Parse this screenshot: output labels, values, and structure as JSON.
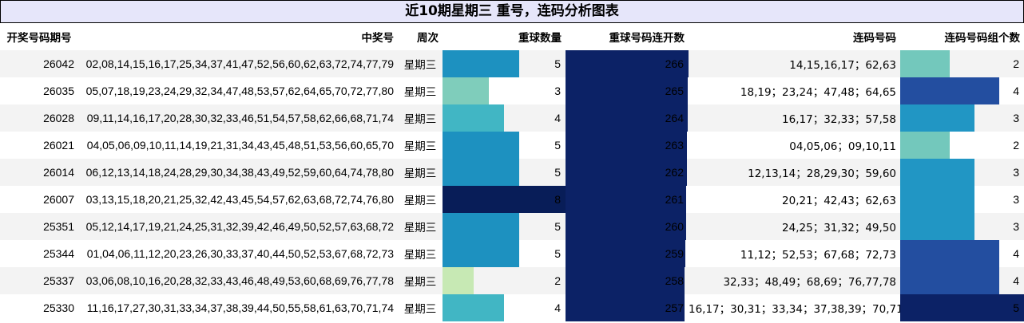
{
  "title": "近10期星期三 重号，连码分析图表",
  "headers": {
    "period": "开奖号码期号",
    "numbers": "中奖号",
    "weekday": "周次",
    "repeat_count": "重球数量",
    "repeat_serial": "重球号码连开数",
    "lianma": "连码号码",
    "lianma_groups": "连码号码组个数"
  },
  "colors": {
    "repeat_count": {
      "2": "#c7e9b4",
      "3": "#7fcdbb",
      "4": "#41b6c4",
      "5": "#1d91c0",
      "8": "#081d58"
    },
    "repeat_serial": "#0c2266",
    "lianma_groups": {
      "2": "#73c8bc",
      "3": "#2196c4",
      "4": "#234ea0",
      "5": "#0c2266"
    }
  },
  "chart_data": {
    "type": "table",
    "columns": [
      "开奖号码期号",
      "中奖号",
      "周次",
      "重球数量",
      "重球号码连开数",
      "连码号码",
      "连码号码组个数"
    ],
    "max": {
      "repeat_count": 8,
      "repeat_serial": 266,
      "lianma_groups": 5
    },
    "rows": [
      {
        "period": "26042",
        "numbers": "02,08,14,15,16,17,25,34,37,41,47,52,56,60,62,63,72,74,77,79",
        "weekday": "星期三",
        "repeat_count": 5,
        "repeat_serial": 266,
        "lianma": "14,15,16,17；62,63",
        "lianma_groups": 2
      },
      {
        "period": "26035",
        "numbers": "05,07,18,19,23,24,29,32,34,47,48,53,57,62,64,65,70,72,77,80",
        "weekday": "星期三",
        "repeat_count": 3,
        "repeat_serial": 265,
        "lianma": "18,19；23,24；47,48；64,65",
        "lianma_groups": 4
      },
      {
        "period": "26028",
        "numbers": "09,11,14,16,17,20,28,30,32,33,46,51,54,57,58,62,66,68,71,74",
        "weekday": "星期三",
        "repeat_count": 4,
        "repeat_serial": 264,
        "lianma": "16,17；32,33；57,58",
        "lianma_groups": 3
      },
      {
        "period": "26021",
        "numbers": "04,05,06,09,10,11,14,19,21,31,34,43,45,48,51,53,56,60,65,70",
        "weekday": "星期三",
        "repeat_count": 5,
        "repeat_serial": 263,
        "lianma": "04,05,06；09,10,11",
        "lianma_groups": 2
      },
      {
        "period": "26014",
        "numbers": "06,12,13,14,18,24,28,29,30,34,38,43,49,52,59,60,64,74,78,80",
        "weekday": "星期三",
        "repeat_count": 5,
        "repeat_serial": 262,
        "lianma": "12,13,14；28,29,30；59,60",
        "lianma_groups": 3
      },
      {
        "period": "26007",
        "numbers": "03,13,15,18,20,21,25,32,42,43,45,54,57,62,63,68,72,74,76,80",
        "weekday": "星期三",
        "repeat_count": 8,
        "repeat_serial": 261,
        "lianma": "20,21；42,43；62,63",
        "lianma_groups": 3
      },
      {
        "period": "25351",
        "numbers": "05,12,14,17,19,21,24,25,31,32,39,42,46,49,50,52,57,63,68,72",
        "weekday": "星期三",
        "repeat_count": 5,
        "repeat_serial": 260,
        "lianma": "24,25；31,32；49,50",
        "lianma_groups": 3
      },
      {
        "period": "25344",
        "numbers": "01,04,06,11,12,20,23,26,30,33,37,40,44,50,52,53,67,68,72,73",
        "weekday": "星期三",
        "repeat_count": 5,
        "repeat_serial": 259,
        "lianma": "11,12；52,53；67,68；72,73",
        "lianma_groups": 4
      },
      {
        "period": "25337",
        "numbers": "03,06,08,10,16,20,28,32,33,43,46,48,49,53,60,68,69,76,77,78",
        "weekday": "星期三",
        "repeat_count": 2,
        "repeat_serial": 258,
        "lianma": "32,33；48,49；68,69；76,77,78",
        "lianma_groups": 4
      },
      {
        "period": "25330",
        "numbers": "11,16,17,27,30,31,33,34,37,38,39,44,50,55,58,61,63,70,71,74",
        "weekday": "星期三",
        "repeat_count": 4,
        "repeat_serial": 257,
        "lianma": "16,17；30,31；33,34；37,38,39；70,71",
        "lianma_groups": 5
      }
    ]
  }
}
